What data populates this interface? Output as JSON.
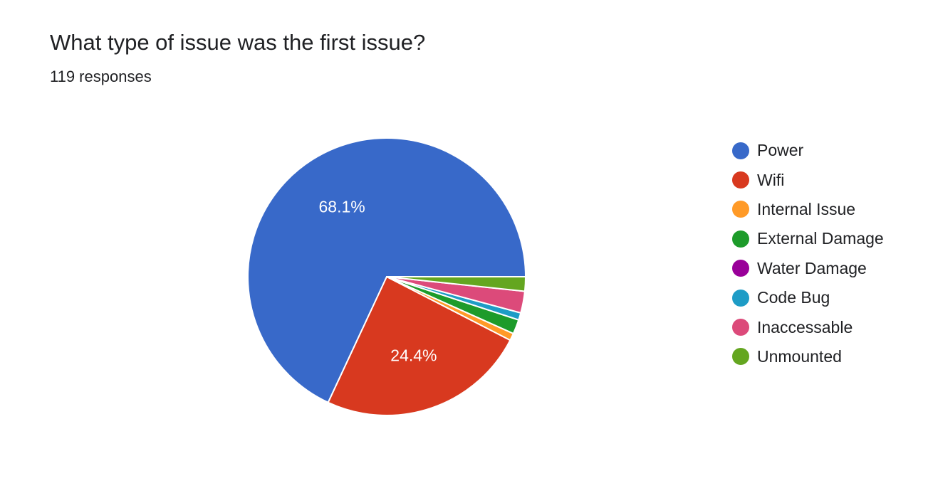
{
  "chart_data": {
    "type": "pie",
    "title": "What type of issue was the first issue?",
    "subtitle": "119 responses",
    "legend_position": "right",
    "series": [
      {
        "name": "Power",
        "value": 81,
        "percent": 68.1,
        "label": "68.1%",
        "color": "#3869c9"
      },
      {
        "name": "Wifi",
        "value": 29,
        "percent": 24.4,
        "label": "24.4%",
        "color": "#d8391f"
      },
      {
        "name": "Internal Issue",
        "value": 1,
        "percent": 0.8,
        "label": "",
        "color": "#ff9a27"
      },
      {
        "name": "External Damage",
        "value": 2,
        "percent": 1.7,
        "label": "",
        "color": "#1d9b2a"
      },
      {
        "name": "Water Damage",
        "value": 0,
        "percent": 0.0,
        "label": "",
        "color": "#990099"
      },
      {
        "name": "Code Bug",
        "value": 1,
        "percent": 0.8,
        "label": "",
        "color": "#1e9cc6"
      },
      {
        "name": "Inaccessable",
        "value": 3,
        "percent": 2.5,
        "label": "",
        "color": "#dc4a7a"
      },
      {
        "name": "Unmounted",
        "value": 2,
        "percent": 1.7,
        "label": "",
        "color": "#64a620"
      }
    ]
  }
}
